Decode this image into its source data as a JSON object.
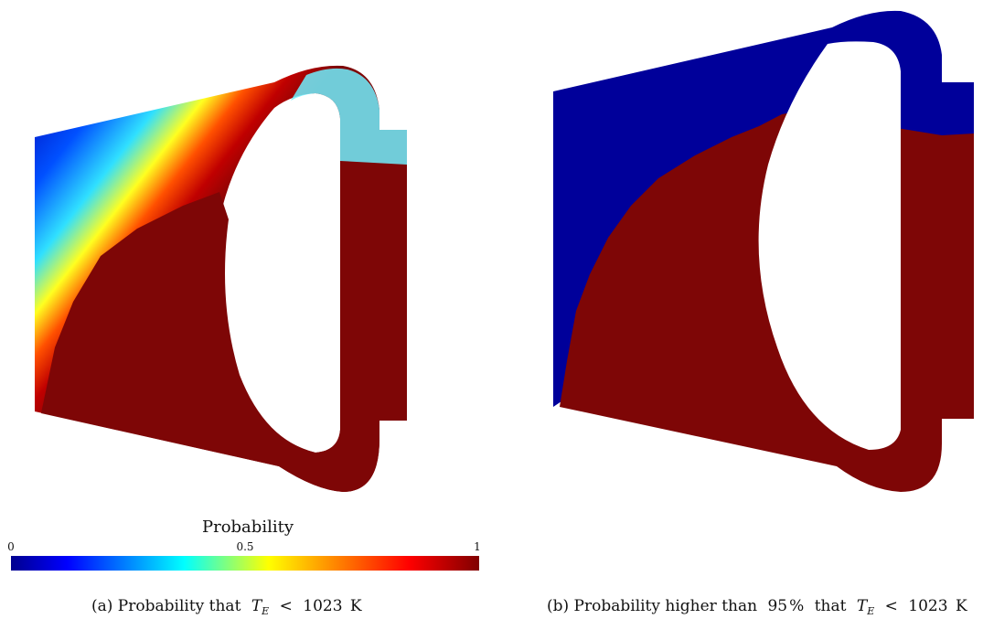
{
  "colorbar": {
    "title": "Probability",
    "ticks": [
      {
        "label": "0",
        "value": 0
      },
      {
        "label": "0.5",
        "value": 0.5
      },
      {
        "label": "1",
        "value": 1
      }
    ],
    "stops": [
      "#00008f",
      "#0000ff",
      "#00ffff",
      "#ffff00",
      "#ff8000",
      "#ff0000",
      "#800000"
    ]
  },
  "panels": [
    {
      "id": "a",
      "caption_prefix": "(a) Probability that",
      "symbol": "T",
      "subscript": "E",
      "relation": "<",
      "value": "1023",
      "unit": "K"
    },
    {
      "id": "b",
      "caption_prefix": "(b) Probability higher than",
      "threshold": "95",
      "percent": "%",
      "caption_mid": "that",
      "symbol": "T",
      "subscript": "E",
      "relation": "<",
      "value": "1023",
      "unit": "K"
    }
  ],
  "colors": {
    "cold": "#00009a",
    "hot": "#7e0606"
  }
}
